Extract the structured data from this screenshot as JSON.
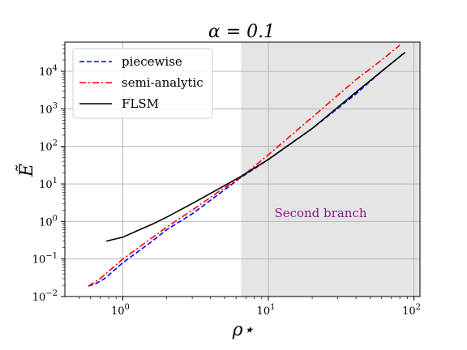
{
  "chart_data": {
    "type": "line",
    "title": "α = 0.1",
    "xlabel": "ρ⋆",
    "ylabel": "Ẽ",
    "xscale": "log",
    "yscale": "log",
    "xlim": [
      0.4,
      110
    ],
    "ylim": [
      0.01,
      60000
    ],
    "grid": true,
    "legend_position": "upper-left",
    "x_ticks": [
      {
        "value": 1,
        "base": "10",
        "exp": "0"
      },
      {
        "value": 10,
        "base": "10",
        "exp": "1"
      },
      {
        "value": 100,
        "base": "10",
        "exp": "2"
      }
    ],
    "y_ticks": [
      {
        "value": 0.01,
        "base": "10",
        "exp": "−2"
      },
      {
        "value": 0.1,
        "base": "10",
        "exp": "−1"
      },
      {
        "value": 1,
        "base": "10",
        "exp": "0"
      },
      {
        "value": 10,
        "base": "10",
        "exp": "1"
      },
      {
        "value": 100,
        "base": "10",
        "exp": "2"
      },
      {
        "value": 1000,
        "base": "10",
        "exp": "3"
      },
      {
        "value": 10000,
        "base": "10",
        "exp": "4"
      }
    ],
    "shaded_region": {
      "x_start": 6.5,
      "x_end": 110,
      "label": "Second branch",
      "label_x": 11,
      "label_y": 1.3
    },
    "series": [
      {
        "name": "piecewise",
        "color": "#0000ff",
        "style": "dashed",
        "points": [
          [
            0.58,
            0.019
          ],
          [
            0.65,
            0.022
          ],
          [
            0.75,
            0.03
          ],
          [
            1.0,
            0.08
          ],
          [
            1.5,
            0.25
          ],
          [
            2.0,
            0.6
          ],
          [
            3.0,
            1.6
          ],
          [
            5.0,
            7
          ],
          [
            6.5,
            15
          ],
          [
            10.0,
            45
          ],
          [
            20.0,
            300
          ],
          [
            40.0,
            2500
          ],
          [
            60.0,
            10000
          ],
          [
            85.0,
            30000
          ]
        ]
      },
      {
        "name": "semi-analytic",
        "color": "#ff0000",
        "style": "dashdot",
        "points": [
          [
            0.58,
            0.019
          ],
          [
            0.7,
            0.03
          ],
          [
            1.0,
            0.1
          ],
          [
            2.0,
            0.7
          ],
          [
            3.0,
            2.0
          ],
          [
            5.0,
            8
          ],
          [
            6.5,
            15
          ],
          [
            10.0,
            60
          ],
          [
            20.0,
            600
          ],
          [
            40.0,
            6000
          ],
          [
            60.0,
            20000
          ],
          [
            80.0,
            50000
          ]
        ]
      },
      {
        "name": "FLSM",
        "color": "#000000",
        "style": "solid",
        "points": [
          [
            0.77,
            0.3
          ],
          [
            1.0,
            0.38
          ],
          [
            1.3,
            0.6
          ],
          [
            1.6,
            0.85
          ],
          [
            2.0,
            1.3
          ],
          [
            3.0,
            3
          ],
          [
            5.0,
            9
          ],
          [
            6.5,
            16
          ],
          [
            10.0,
            45
          ],
          [
            20.0,
            300
          ],
          [
            40.0,
            2800
          ],
          [
            60.0,
            10000
          ],
          [
            87.0,
            32000
          ]
        ]
      }
    ]
  }
}
